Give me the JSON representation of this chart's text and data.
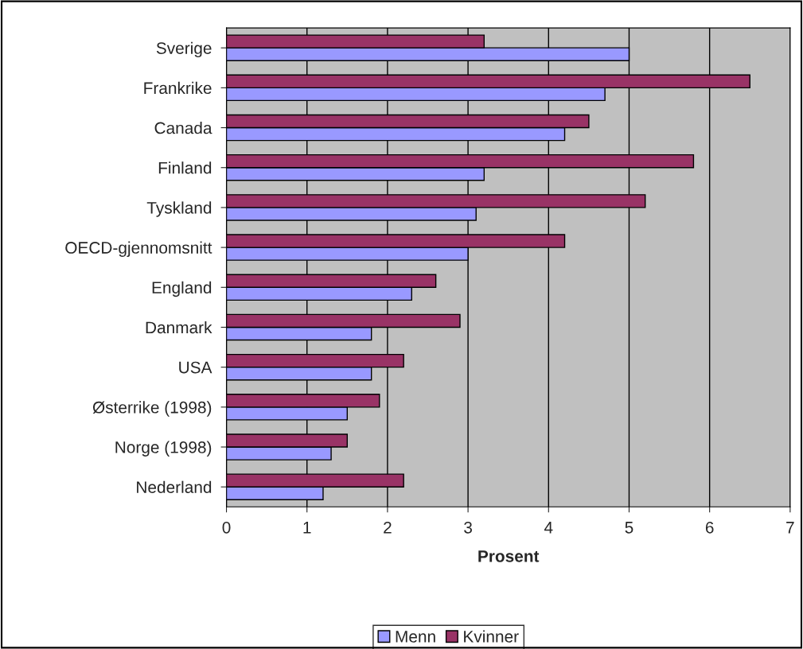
{
  "chart_data": {
    "type": "bar",
    "orientation": "horizontal",
    "xlabel": "Prosent",
    "categories": [
      "Sverige",
      "Frankrike",
      "Canada",
      "Finland",
      "Tyskland",
      "OECD-gjennomsnitt",
      "England",
      "Danmark",
      "USA",
      "Østerrike (1998)",
      "Norge (1998)",
      "Nederland"
    ],
    "series": [
      {
        "name": "Menn",
        "color": "#9999ff",
        "values": [
          5.0,
          4.7,
          4.2,
          3.2,
          3.1,
          3.0,
          2.3,
          1.8,
          1.8,
          1.5,
          1.3,
          1.2
        ]
      },
      {
        "name": "Kvinner",
        "color": "#993366",
        "values": [
          3.2,
          6.5,
          4.5,
          5.8,
          5.2,
          4.2,
          2.6,
          2.9,
          2.2,
          1.9,
          1.5,
          2.2
        ]
      }
    ],
    "xlim": [
      0,
      7
    ],
    "xticks": [
      0,
      1,
      2,
      3,
      4,
      5,
      6,
      7
    ],
    "grid": "x",
    "legend": "bottom"
  }
}
